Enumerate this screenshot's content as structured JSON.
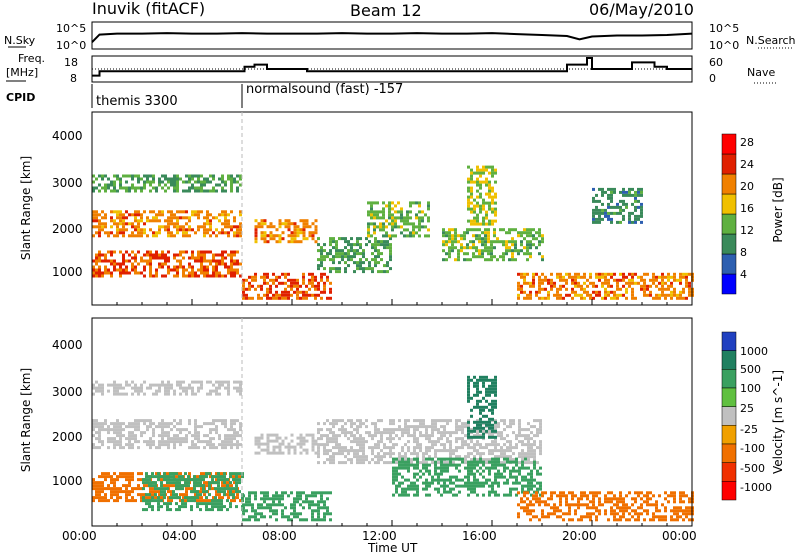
{
  "header": {
    "station": "Inuvik (fitACF)",
    "beam": "Beam 12",
    "date": "06/May/2010"
  },
  "noise_panel": {
    "left_label": "N.Sky",
    "right_label": "N.Search",
    "left_ticks": [
      "10^5",
      "10^0"
    ],
    "right_ticks": [
      "10^5",
      "10^0"
    ]
  },
  "freq_panel": {
    "left_label_1": "Freq.",
    "left_label_2": "[MHz]",
    "left_ticks": [
      "18",
      "8"
    ],
    "right_label": "Nave",
    "right_ticks": [
      "60",
      "0"
    ]
  },
  "cpid_panel": {
    "label": "CPID",
    "entries": [
      {
        "time_hours": 0.0,
        "name": "themis 3300"
      },
      {
        "time_hours": 6.0,
        "name": "normalsound (fast) -157"
      }
    ]
  },
  "power_panel": {
    "ylabel": "Slant Range [km]",
    "yticks": [
      "4000",
      "3000",
      "2000",
      "1000"
    ],
    "colorbar_label": "Power [dB]",
    "colorbar_ticks": [
      "28",
      "24",
      "20",
      "16",
      "12",
      "8",
      "4"
    ],
    "colorbar_colors": [
      "#0000ff",
      "#2d5fb0",
      "#3a8a5a",
      "#5fb040",
      "#f0c000",
      "#f08000",
      "#e02000",
      "#ff0000"
    ]
  },
  "velocity_panel": {
    "ylabel": "Slant Range [km]",
    "yticks": [
      "4000",
      "3000",
      "2000",
      "1000"
    ],
    "colorbar_label": "Velocity [m s^-1]",
    "colorbar_ticks": [
      "1000",
      "500",
      "100",
      "25",
      "-25",
      "-100",
      "-500",
      "-1000"
    ],
    "colorbar_colors": [
      "#2040c0",
      "#208060",
      "#3aa060",
      "#60c040",
      "#c0c0c0",
      "#f0a000",
      "#f07000",
      "#f03000",
      "#ff0000"
    ]
  },
  "x_axis": {
    "label": "Time UT",
    "ticks": [
      "00:00",
      "04:00",
      "08:00",
      "12:00",
      "16:00",
      "20:00",
      "00:00"
    ]
  },
  "chart_data": [
    {
      "type": "line",
      "title": "N.Sky / N.Search",
      "x_range_hours": [
        0,
        24
      ],
      "series": [
        {
          "name": "N.Sky",
          "x": [
            0,
            0.3,
            1,
            2,
            3,
            4,
            5,
            6,
            7,
            8,
            9,
            10,
            11,
            12,
            13,
            14,
            15,
            16,
            17,
            18,
            19,
            19.5,
            20,
            21,
            22,
            23,
            24
          ],
          "y": [
            1.2,
            2.8,
            3.0,
            3.0,
            3.1,
            3.0,
            3.0,
            3.1,
            3.0,
            3.0,
            3.0,
            3.1,
            3.0,
            3.0,
            3.1,
            3.0,
            3.0,
            3.1,
            2.9,
            2.7,
            2.5,
            1.8,
            2.4,
            2.6,
            2.6,
            2.7,
            3.0
          ]
        }
      ]
    },
    {
      "type": "line",
      "title": "Freq / Nave",
      "x_range_hours": [
        0,
        24
      ],
      "series": [
        {
          "name": "Freq",
          "x": [
            0,
            0.3,
            6,
            6.1,
            6.5,
            7,
            8,
            8.4,
            8.6,
            9,
            12,
            15,
            18,
            18.9,
            19,
            19.6,
            19.8,
            20,
            21.4,
            21.6,
            22,
            22.5,
            23,
            24
          ],
          "y": [
            10,
            12,
            12,
            14,
            15,
            13,
            13,
            13,
            12,
            12,
            12,
            12,
            12,
            12,
            15,
            15,
            18,
            13,
            13,
            16,
            16,
            14,
            13,
            13
          ]
        },
        {
          "name": "Nave",
          "x": [
            0,
            6,
            24
          ],
          "y": [
            30,
            30,
            30
          ]
        }
      ]
    },
    {
      "type": "heatmap",
      "title": "Power [dB]",
      "x_range_hours": [
        0,
        24
      ],
      "y_range_km": [
        180,
        4500
      ],
      "bands": [
        {
          "t0": 0.0,
          "t1": 6.0,
          "r0": 1750,
          "r1": 2300,
          "value": 22
        },
        {
          "t0": 0.0,
          "t1": 6.0,
          "r0": 800,
          "r1": 1400,
          "value": 24
        },
        {
          "t0": 0.0,
          "t1": 6.0,
          "r0": 2700,
          "r1": 3100,
          "value": 12
        },
        {
          "t0": 6.0,
          "t1": 9.5,
          "r0": 300,
          "r1": 900,
          "value": 24
        },
        {
          "t0": 6.5,
          "t1": 9.0,
          "r0": 1600,
          "r1": 2100,
          "value": 22
        },
        {
          "t0": 9.0,
          "t1": 12.0,
          "r0": 900,
          "r1": 1700,
          "value": 12
        },
        {
          "t0": 11.0,
          "t1": 13.5,
          "r0": 1700,
          "r1": 2500,
          "value": 14
        },
        {
          "t0": 14.0,
          "t1": 18.0,
          "r0": 1200,
          "r1": 1900,
          "value": 14
        },
        {
          "t0": 15.0,
          "t1": 16.2,
          "r0": 2000,
          "r1": 3300,
          "value": 16
        },
        {
          "t0": 17.0,
          "t1": 24.0,
          "r0": 300,
          "r1": 900,
          "value": 22
        },
        {
          "t0": 20.0,
          "t1": 22.0,
          "r0": 2000,
          "r1": 2800,
          "value": 10
        }
      ]
    },
    {
      "type": "heatmap",
      "title": "Velocity [m s^-1]",
      "x_range_hours": [
        0,
        24
      ],
      "y_range_km": [
        180,
        4500
      ],
      "bands": [
        {
          "t0": 0.0,
          "t1": 6.0,
          "r0": 1800,
          "r1": 2400,
          "value": 0
        },
        {
          "t0": 0.0,
          "t1": 6.0,
          "r0": 2900,
          "r1": 3200,
          "value": 0
        },
        {
          "t0": 0.0,
          "t1": 6.0,
          "r0": 700,
          "r1": 1300,
          "value": -200
        },
        {
          "t0": 2.0,
          "t1": 6.0,
          "r0": 500,
          "r1": 1300,
          "value": 120
        },
        {
          "t0": 6.0,
          "t1": 9.5,
          "r0": 300,
          "r1": 900,
          "value": 120
        },
        {
          "t0": 6.5,
          "t1": 9.0,
          "r0": 1700,
          "r1": 2100,
          "value": 0
        },
        {
          "t0": 9.0,
          "t1": 18.0,
          "r0": 1500,
          "r1": 2400,
          "value": 0
        },
        {
          "t0": 12.0,
          "t1": 18.0,
          "r0": 800,
          "r1": 1600,
          "value": 120
        },
        {
          "t0": 15.0,
          "t1": 16.2,
          "r0": 2000,
          "r1": 3300,
          "value": 600
        },
        {
          "t0": 17.0,
          "t1": 24.0,
          "r0": 300,
          "r1": 900,
          "value": -150
        }
      ]
    }
  ]
}
